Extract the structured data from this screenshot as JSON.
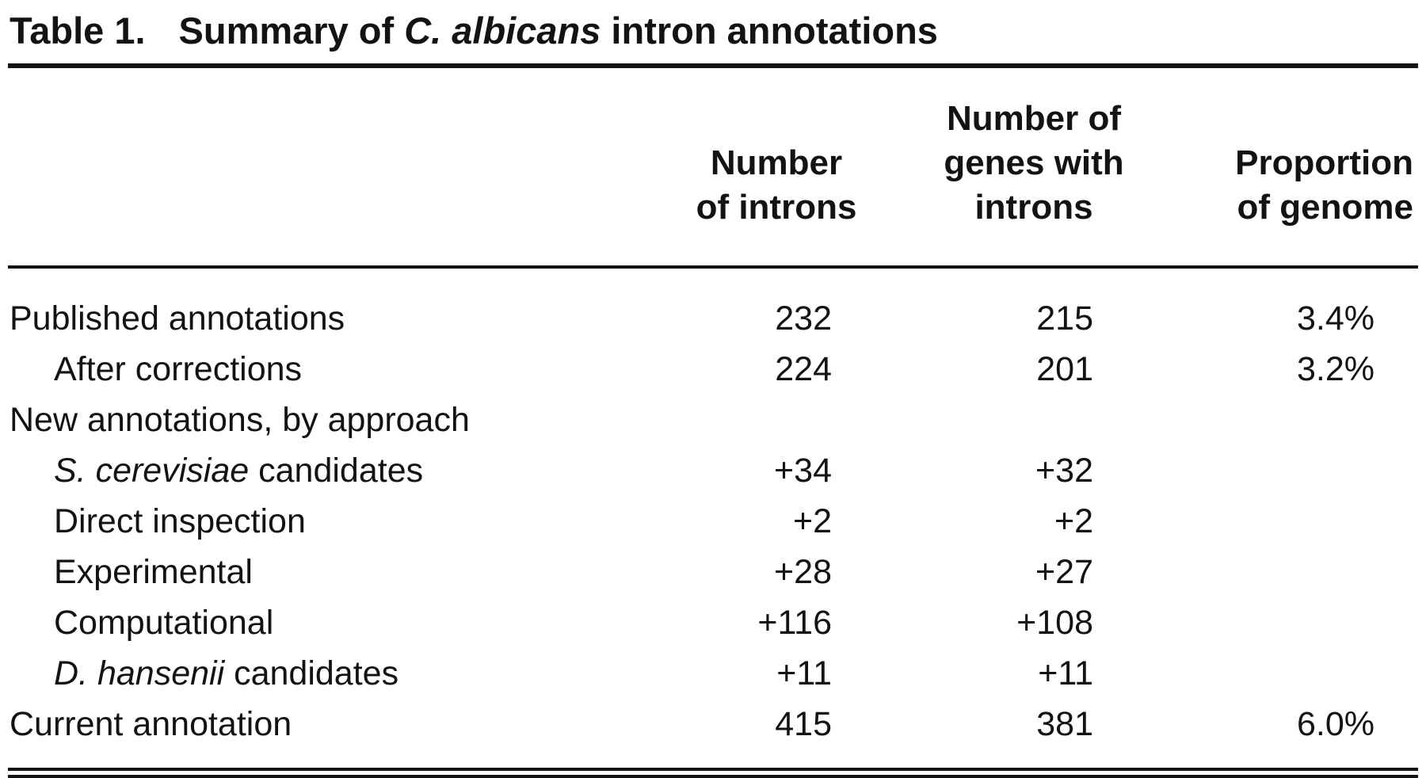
{
  "title": {
    "label": "Table 1.",
    "text_before": "Summary of ",
    "species": "C. albicans",
    "text_after": " intron annotations"
  },
  "table": {
    "headers": {
      "introns": "Number\nof introns",
      "genes": "Number of\ngenes with\nintrons",
      "proportion": "Proportion\nof genome"
    },
    "rows": [
      {
        "label_italic": "",
        "label_text": "Published annotations",
        "introns": "232",
        "genes": "215",
        "proportion": "3.4%"
      },
      {
        "label_italic": "",
        "label_text": "After corrections",
        "introns": "224",
        "genes": "201",
        "proportion": "3.2%"
      },
      {
        "label_italic": "",
        "label_text": "New annotations, by approach",
        "introns": "",
        "genes": "",
        "proportion": ""
      },
      {
        "label_italic": "S. cerevisiae",
        "label_text": " candidates",
        "introns": "+34",
        "genes": "+32",
        "proportion": ""
      },
      {
        "label_italic": "",
        "label_text": "Direct inspection",
        "introns": "+2",
        "genes": "+2",
        "proportion": ""
      },
      {
        "label_italic": "",
        "label_text": "Experimental",
        "introns": "+28",
        "genes": "+27",
        "proportion": ""
      },
      {
        "label_italic": "",
        "label_text": "Computational",
        "introns": "+116",
        "genes": "+108",
        "proportion": ""
      },
      {
        "label_italic": "D. hansenii",
        "label_text": " candidates",
        "introns": "+11",
        "genes": "+11",
        "proportion": ""
      },
      {
        "label_italic": "",
        "label_text": "Current annotation",
        "introns": "415",
        "genes": "381",
        "proportion": "6.0%"
      }
    ]
  }
}
